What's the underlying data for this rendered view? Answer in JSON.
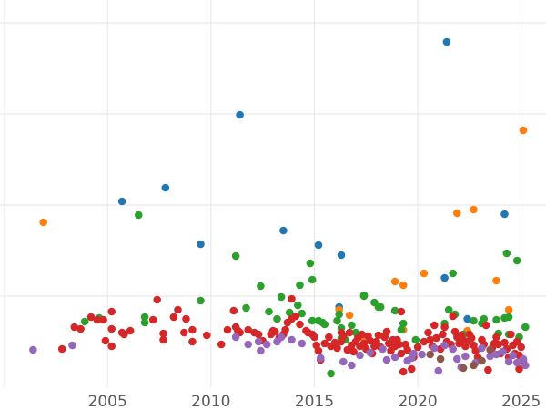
{
  "chart_data": {
    "type": "scatter",
    "xlim": [
      1999.8,
      2026.2
    ],
    "ylim": [
      0,
      425
    ],
    "x_ticks": [
      2005,
      2010,
      2015,
      2020,
      2025
    ],
    "x_tick_labels": [
      "2005",
      "2010",
      "2015",
      "2020",
      "2025"
    ],
    "y_gridlines": [
      100,
      200,
      300,
      400
    ],
    "grid": true,
    "series": [
      {
        "color": "#1f77b4",
        "points": [
          [
            2005.7,
            204
          ],
          [
            2007.8,
            219
          ],
          [
            2009.5,
            157
          ],
          [
            2011.4,
            299
          ],
          [
            2013.5,
            172
          ],
          [
            2015.2,
            156
          ],
          [
            2016.3,
            145
          ],
          [
            2016.2,
            88
          ],
          [
            2021.3,
            120
          ],
          [
            2021.4,
            379
          ],
          [
            2022.4,
            75
          ],
          [
            2024.2,
            190
          ]
        ]
      },
      {
        "color": "#ff7f0e",
        "points": [
          [
            2001.9,
            181
          ],
          [
            2016.2,
            85
          ],
          [
            2016.7,
            79
          ],
          [
            2017.4,
            54
          ],
          [
            2018.9,
            116
          ],
          [
            2019.3,
            112
          ],
          [
            2019.3,
            63
          ],
          [
            2020.3,
            125
          ],
          [
            2021.9,
            191
          ],
          [
            2022.7,
            195
          ],
          [
            2022.4,
            62
          ],
          [
            2023.8,
            117
          ],
          [
            2024.4,
            85
          ],
          [
            2025.1,
            282
          ]
        ]
      },
      {
        "color": "#2ca02c",
        "points": [
          [
            2003.9,
            72
          ],
          [
            2004.6,
            76
          ],
          [
            2006.5,
            189
          ],
          [
            2006.8,
            77
          ],
          [
            2006.8,
            71
          ],
          [
            2009.5,
            95
          ],
          [
            2011.2,
            144
          ],
          [
            2011.7,
            87
          ],
          [
            2012.4,
            111
          ],
          [
            2012.8,
            83
          ],
          [
            2013.2,
            75
          ],
          [
            2013.4,
            99
          ],
          [
            2013.8,
            82
          ],
          [
            2014.2,
            90
          ],
          [
            2014.3,
            112
          ],
          [
            2014.4,
            81
          ],
          [
            2014.8,
            136
          ],
          [
            2014.9,
            118
          ],
          [
            2014.9,
            73
          ],
          [
            2015.2,
            73
          ],
          [
            2015.4,
            71
          ],
          [
            2015.5,
            69
          ],
          [
            2015.8,
            15
          ],
          [
            2016.1,
            73
          ],
          [
            2016.2,
            80
          ],
          [
            2016.3,
            65
          ],
          [
            2016.3,
            54
          ],
          [
            2016.5,
            52
          ],
          [
            2016.8,
            68
          ],
          [
            2017.0,
            60
          ],
          [
            2017.4,
            100
          ],
          [
            2017.4,
            101
          ],
          [
            2017.9,
            93
          ],
          [
            2018.1,
            88
          ],
          [
            2018.2,
            88
          ],
          [
            2018.4,
            56
          ],
          [
            2018.9,
            84
          ],
          [
            2019.2,
            63
          ],
          [
            2019.3,
            70
          ],
          [
            2019.9,
            52
          ],
          [
            2021.3,
            70
          ],
          [
            2021.5,
            85
          ],
          [
            2021.7,
            125
          ],
          [
            2021.8,
            80
          ],
          [
            2022.2,
            58
          ],
          [
            2022.7,
            73
          ],
          [
            2023.1,
            70
          ],
          [
            2023.2,
            75
          ],
          [
            2023.8,
            74
          ],
          [
            2023.9,
            59
          ],
          [
            2024.2,
            76
          ],
          [
            2024.3,
            147
          ],
          [
            2024.4,
            77
          ],
          [
            2024.4,
            58
          ],
          [
            2024.8,
            139
          ],
          [
            2024.9,
            55
          ],
          [
            2025.2,
            66
          ]
        ]
      },
      {
        "color": "#d62728",
        "points": [
          [
            2002.8,
            42
          ],
          [
            2003.4,
            66
          ],
          [
            2003.7,
            64
          ],
          [
            2004.2,
            77
          ],
          [
            2004.5,
            74
          ],
          [
            2004.8,
            74
          ],
          [
            2004.9,
            51
          ],
          [
            2005.2,
            83
          ],
          [
            2005.2,
            45
          ],
          [
            2005.2,
            64
          ],
          [
            2005.7,
            60
          ],
          [
            2005.8,
            58
          ],
          [
            2006.1,
            62
          ],
          [
            2007.2,
            74
          ],
          [
            2007.4,
            96
          ],
          [
            2007.7,
            52
          ],
          [
            2007.7,
            59
          ],
          [
            2008.2,
            77
          ],
          [
            2008.4,
            85
          ],
          [
            2008.7,
            60
          ],
          [
            2008.8,
            75
          ],
          [
            2009.1,
            50
          ],
          [
            2009.1,
            63
          ],
          [
            2009.8,
            57
          ],
          [
            2010.5,
            47
          ],
          [
            2010.8,
            63
          ],
          [
            2011.1,
            84
          ],
          [
            2011.2,
            66
          ],
          [
            2011.3,
            62
          ],
          [
            2011.4,
            60
          ],
          [
            2011.8,
            63
          ],
          [
            2012.1,
            60
          ],
          [
            2012.3,
            58
          ],
          [
            2012.5,
            51
          ],
          [
            2012.9,
            58
          ],
          [
            2013.0,
            62
          ],
          [
            2013.1,
            61
          ],
          [
            2013.3,
            54
          ],
          [
            2013.5,
            58
          ],
          [
            2013.6,
            63
          ],
          [
            2013.7,
            71
          ],
          [
            2013.9,
            75
          ],
          [
            2013.9,
            97
          ],
          [
            2014.1,
            78
          ],
          [
            2014.3,
            69
          ],
          [
            2014.6,
            62
          ],
          [
            2014.7,
            60
          ],
          [
            2014.9,
            58
          ],
          [
            2015.0,
            55
          ],
          [
            2015.1,
            46
          ],
          [
            2015.2,
            40
          ],
          [
            2015.3,
            30
          ],
          [
            2015.5,
            48
          ],
          [
            2015.7,
            55
          ],
          [
            2015.8,
            45
          ],
          [
            2016.0,
            49
          ],
          [
            2016.1,
            43
          ],
          [
            2016.3,
            60
          ],
          [
            2016.3,
            50
          ],
          [
            2016.4,
            56
          ],
          [
            2016.6,
            41
          ],
          [
            2016.7,
            60
          ],
          [
            2016.8,
            46
          ],
          [
            2016.9,
            39
          ],
          [
            2017.0,
            50
          ],
          [
            2017.1,
            54
          ],
          [
            2017.2,
            45
          ],
          [
            2017.3,
            58
          ],
          [
            2017.4,
            48
          ],
          [
            2017.5,
            42
          ],
          [
            2017.6,
            56
          ],
          [
            2017.7,
            51
          ],
          [
            2017.8,
            37
          ],
          [
            2017.9,
            45
          ],
          [
            2018.0,
            50
          ],
          [
            2018.1,
            57
          ],
          [
            2018.2,
            44
          ],
          [
            2018.4,
            55
          ],
          [
            2018.5,
            61
          ],
          [
            2018.6,
            48
          ],
          [
            2018.7,
            40
          ],
          [
            2018.8,
            52
          ],
          [
            2018.9,
            45
          ],
          [
            2019.0,
            52
          ],
          [
            2019.1,
            47
          ],
          [
            2019.2,
            83
          ],
          [
            2019.2,
            37
          ],
          [
            2019.3,
            17
          ],
          [
            2019.4,
            47
          ],
          [
            2019.5,
            41
          ],
          [
            2019.7,
            20
          ],
          [
            2019.8,
            33
          ],
          [
            2020.0,
            44
          ],
          [
            2020.3,
            50
          ],
          [
            2020.5,
            60
          ],
          [
            2020.6,
            52
          ],
          [
            2020.7,
            45
          ],
          [
            2020.8,
            68
          ],
          [
            2020.9,
            54
          ],
          [
            2021.1,
            42
          ],
          [
            2021.2,
            58
          ],
          [
            2021.3,
            66
          ],
          [
            2021.4,
            50
          ],
          [
            2021.6,
            47
          ],
          [
            2021.7,
            78
          ],
          [
            2021.8,
            61
          ],
          [
            2021.9,
            55
          ],
          [
            2022.0,
            48
          ],
          [
            2022.1,
            57
          ],
          [
            2022.2,
            52
          ],
          [
            2022.3,
            45
          ],
          [
            2022.4,
            50
          ],
          [
            2022.5,
            58
          ],
          [
            2022.6,
            54
          ],
          [
            2022.7,
            46
          ],
          [
            2022.8,
            40
          ],
          [
            2022.9,
            33
          ],
          [
            2023.1,
            52
          ],
          [
            2023.2,
            47
          ],
          [
            2023.3,
            68
          ],
          [
            2023.4,
            19
          ],
          [
            2023.6,
            43
          ],
          [
            2023.7,
            48
          ],
          [
            2023.8,
            55
          ],
          [
            2023.9,
            47
          ],
          [
            2024.0,
            37
          ],
          [
            2024.2,
            49
          ],
          [
            2024.3,
            42
          ],
          [
            2024.4,
            33
          ],
          [
            2024.5,
            58
          ],
          [
            2024.6,
            46
          ],
          [
            2024.7,
            37
          ],
          [
            2024.8,
            50
          ],
          [
            2024.9,
            35
          ],
          [
            2024.9,
            20
          ],
          [
            2025.0,
            44
          ],
          [
            2025.1,
            29
          ]
        ]
      },
      {
        "color": "#9467bd",
        "points": [
          [
            2001.4,
            41
          ],
          [
            2003.3,
            46
          ],
          [
            2011.2,
            55
          ],
          [
            2011.8,
            47
          ],
          [
            2012.3,
            50
          ],
          [
            2012.4,
            40
          ],
          [
            2012.7,
            47
          ],
          [
            2013.2,
            50
          ],
          [
            2013.4,
            55
          ],
          [
            2013.9,
            52
          ],
          [
            2014.4,
            48
          ],
          [
            2015.3,
            32
          ],
          [
            2016.4,
            28
          ],
          [
            2016.8,
            24
          ],
          [
            2017.2,
            35
          ],
          [
            2017.7,
            38
          ],
          [
            2018.3,
            42
          ],
          [
            2018.5,
            30
          ],
          [
            2018.9,
            33
          ],
          [
            2019.5,
            29
          ],
          [
            2019.7,
            32
          ],
          [
            2019.8,
            37
          ],
          [
            2020.2,
            36
          ],
          [
            2020.8,
            43
          ],
          [
            2021.0,
            18
          ],
          [
            2021.3,
            46
          ],
          [
            2021.7,
            42
          ],
          [
            2021.9,
            31
          ],
          [
            2022.1,
            22
          ],
          [
            2022.3,
            34
          ],
          [
            2022.8,
            27
          ],
          [
            2023.1,
            43
          ],
          [
            2023.5,
            34
          ],
          [
            2023.8,
            36
          ],
          [
            2024.1,
            39
          ],
          [
            2024.4,
            28
          ],
          [
            2024.6,
            35
          ],
          [
            2024.8,
            27
          ],
          [
            2025.1,
            31
          ],
          [
            2025.2,
            24
          ]
        ]
      },
      {
        "color": "#8c564b",
        "points": [
          [
            2020.6,
            36
          ],
          [
            2021.1,
            31
          ],
          [
            2022.2,
            21
          ],
          [
            2022.7,
            24
          ],
          [
            2023.1,
            29
          ],
          [
            2023.5,
            41
          ]
        ]
      }
    ]
  }
}
